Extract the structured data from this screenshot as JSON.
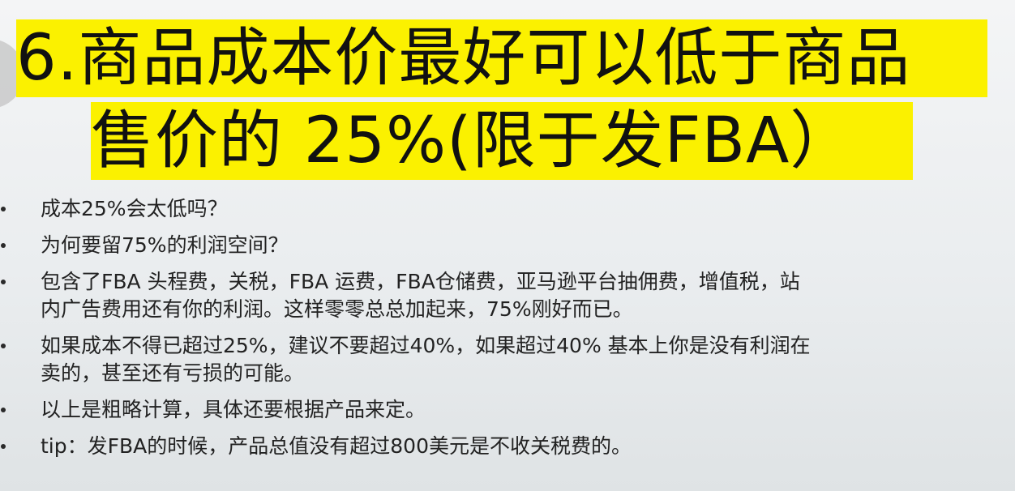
{
  "slide": {
    "title_line_1": "6.商品成本价最好可以低于商品",
    "title_line_2": "售价的 25%(限于发FBA）",
    "highlight_color": "#fbf100",
    "bullets": [
      {
        "lines": [
          "成本25%会太低吗？"
        ]
      },
      {
        "lines": [
          "为何要留75%的利润空间？"
        ]
      },
      {
        "lines": [
          "包含了FBA 头程费，关税，FBA 运费，FBA仓储费，亚马逊平台抽佣费，增值税，站",
          "内广告费用还有你的利润。这样零零总总加起来，75%刚好而已。"
        ]
      },
      {
        "lines": [
          "如果成本不得已超过25%，建议不要超过40%，如果超过40% 基本上你是没有利润在",
          "卖的，甚至还有亏损的可能。"
        ]
      },
      {
        "lines": [
          "以上是粗略计算，具体还要根据产品来定。"
        ]
      },
      {
        "lines": [
          "tip：发FBA的时候，产品总值没有超过800美元是不收关税费的。"
        ]
      }
    ]
  }
}
